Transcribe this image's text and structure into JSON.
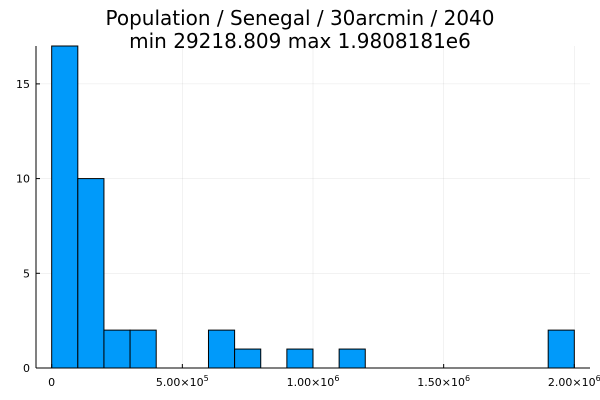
{
  "chart_data": {
    "type": "bar",
    "title": "Population / Senegal / 30arcmin / 2040",
    "subtitle": "min 29218.809  max 1.9808181e6",
    "xlabel": "",
    "ylabel": "",
    "bar_color": "#009AFA",
    "bin_width": 100000,
    "bins": [
      {
        "start": 0,
        "end": 100000,
        "count": 17
      },
      {
        "start": 100000,
        "end": 200000,
        "count": 10
      },
      {
        "start": 200000,
        "end": 300000,
        "count": 2
      },
      {
        "start": 300000,
        "end": 400000,
        "count": 2
      },
      {
        "start": 400000,
        "end": 500000,
        "count": 0
      },
      {
        "start": 500000,
        "end": 600000,
        "count": 0
      },
      {
        "start": 600000,
        "end": 700000,
        "count": 2
      },
      {
        "start": 700000,
        "end": 800000,
        "count": 1
      },
      {
        "start": 800000,
        "end": 900000,
        "count": 0
      },
      {
        "start": 900000,
        "end": 1000000,
        "count": 1
      },
      {
        "start": 1000000,
        "end": 1100000,
        "count": 0
      },
      {
        "start": 1100000,
        "end": 1200000,
        "count": 1
      },
      {
        "start": 1200000,
        "end": 1300000,
        "count": 0
      },
      {
        "start": 1300000,
        "end": 1400000,
        "count": 0
      },
      {
        "start": 1400000,
        "end": 1500000,
        "count": 0
      },
      {
        "start": 1500000,
        "end": 1600000,
        "count": 0
      },
      {
        "start": 1600000,
        "end": 1700000,
        "count": 0
      },
      {
        "start": 1700000,
        "end": 1800000,
        "count": 0
      },
      {
        "start": 1800000,
        "end": 1900000,
        "count": 0
      },
      {
        "start": 1900000,
        "end": 2000000,
        "count": 2
      }
    ],
    "xlim": [
      -60000,
      2060000
    ],
    "ylim": [
      0,
      17
    ],
    "x_ticks": [
      {
        "value": 0,
        "mantissa": "0",
        "exponent": ""
      },
      {
        "value": 500000,
        "mantissa": "5.00×10",
        "exponent": "5"
      },
      {
        "value": 1000000,
        "mantissa": "1.00×10",
        "exponent": "6"
      },
      {
        "value": 1500000,
        "mantissa": "1.50×10",
        "exponent": "6"
      },
      {
        "value": 2000000,
        "mantissa": "2.00×10",
        "exponent": "6"
      }
    ],
    "y_ticks": [
      {
        "value": 0,
        "label": "0"
      },
      {
        "value": 5,
        "label": "5"
      },
      {
        "value": 10,
        "label": "10"
      },
      {
        "value": 15,
        "label": "15"
      }
    ],
    "grid": true,
    "legend": "none"
  }
}
